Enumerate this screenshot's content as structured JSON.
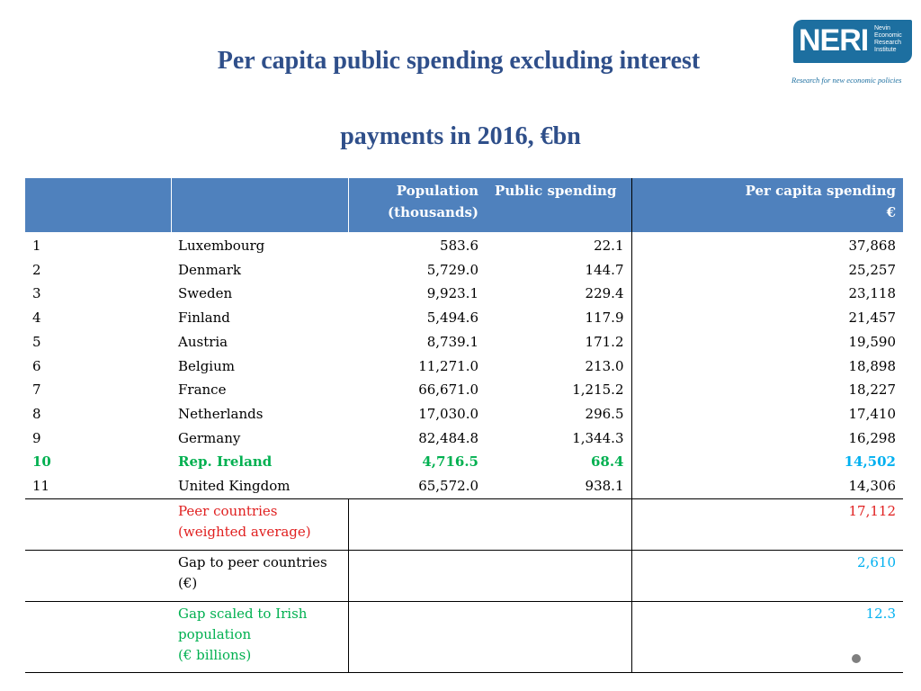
{
  "title": {
    "line1": "Per capita public spending excluding interest",
    "line2": "payments in 2016, €bn"
  },
  "logo": {
    "name": "NERI",
    "sub1": "Nevin",
    "sub2": "Economic",
    "sub3": "Research",
    "sub4": "Institute",
    "tagline": "Research for new economic policies",
    "color": "#1d6fa0"
  },
  "table": {
    "headers": {
      "population_l1": "Population",
      "population_l2": "(thousands)",
      "public_spending": "Public spending",
      "per_capita_l1": "Per capita spending",
      "per_capita_l2": "€"
    },
    "rows": [
      {
        "rank": "1",
        "country": "Luxembourg",
        "population": "583.6",
        "spending": "22.1",
        "per_capita": "37,868"
      },
      {
        "rank": "2",
        "country": "Denmark",
        "population": "5,729.0",
        "spending": "144.7",
        "per_capita": "25,257"
      },
      {
        "rank": "3",
        "country": "Sweden",
        "population": "9,923.1",
        "spending": "229.4",
        "per_capita": "23,118"
      },
      {
        "rank": "4",
        "country": "Finland",
        "population": "5,494.6",
        "spending": "117.9",
        "per_capita": "21,457"
      },
      {
        "rank": "5",
        "country": "Austria",
        "population": "8,739.1",
        "spending": "171.2",
        "per_capita": "19,590"
      },
      {
        "rank": "6",
        "country": "Belgium",
        "population": "11,271.0",
        "spending": "213.0",
        "per_capita": "18,898"
      },
      {
        "rank": "7",
        "country": "France",
        "population": "66,671.0",
        "spending": "1,215.2",
        "per_capita": "18,227"
      },
      {
        "rank": "8",
        "country": "Netherlands",
        "population": "17,030.0",
        "spending": "296.5",
        "per_capita": "17,410"
      },
      {
        "rank": "9",
        "country": "Germany",
        "population": "82,484.8",
        "spending": "1,344.3",
        "per_capita": "16,298"
      },
      {
        "rank": "10",
        "country": "Rep. Ireland",
        "population": "4,716.5",
        "spending": "68.4",
        "per_capita": "14,502"
      },
      {
        "rank": "11",
        "country": "United Kingdom",
        "population": "65,572.0",
        "spending": "938.1",
        "per_capita": "14,306"
      }
    ],
    "summary": {
      "peer_l1": "Peer countries",
      "peer_l2": "(weighted average)",
      "peer_value": "17,112",
      "gap_l1": "Gap to peer countries",
      "gap_l2": "(€)",
      "gap_value": "2,610",
      "scaled_l1": "Gap scaled to Irish",
      "scaled_l2": "population",
      "scaled_l3": "(€ billions)",
      "scaled_value": "12.3"
    }
  },
  "colors": {
    "title": "#2f4f8a",
    "header_bg": "#4f81bd",
    "highlight_green": "#00b050",
    "highlight_blue": "#00b0f0",
    "highlight_red": "#e02020"
  }
}
